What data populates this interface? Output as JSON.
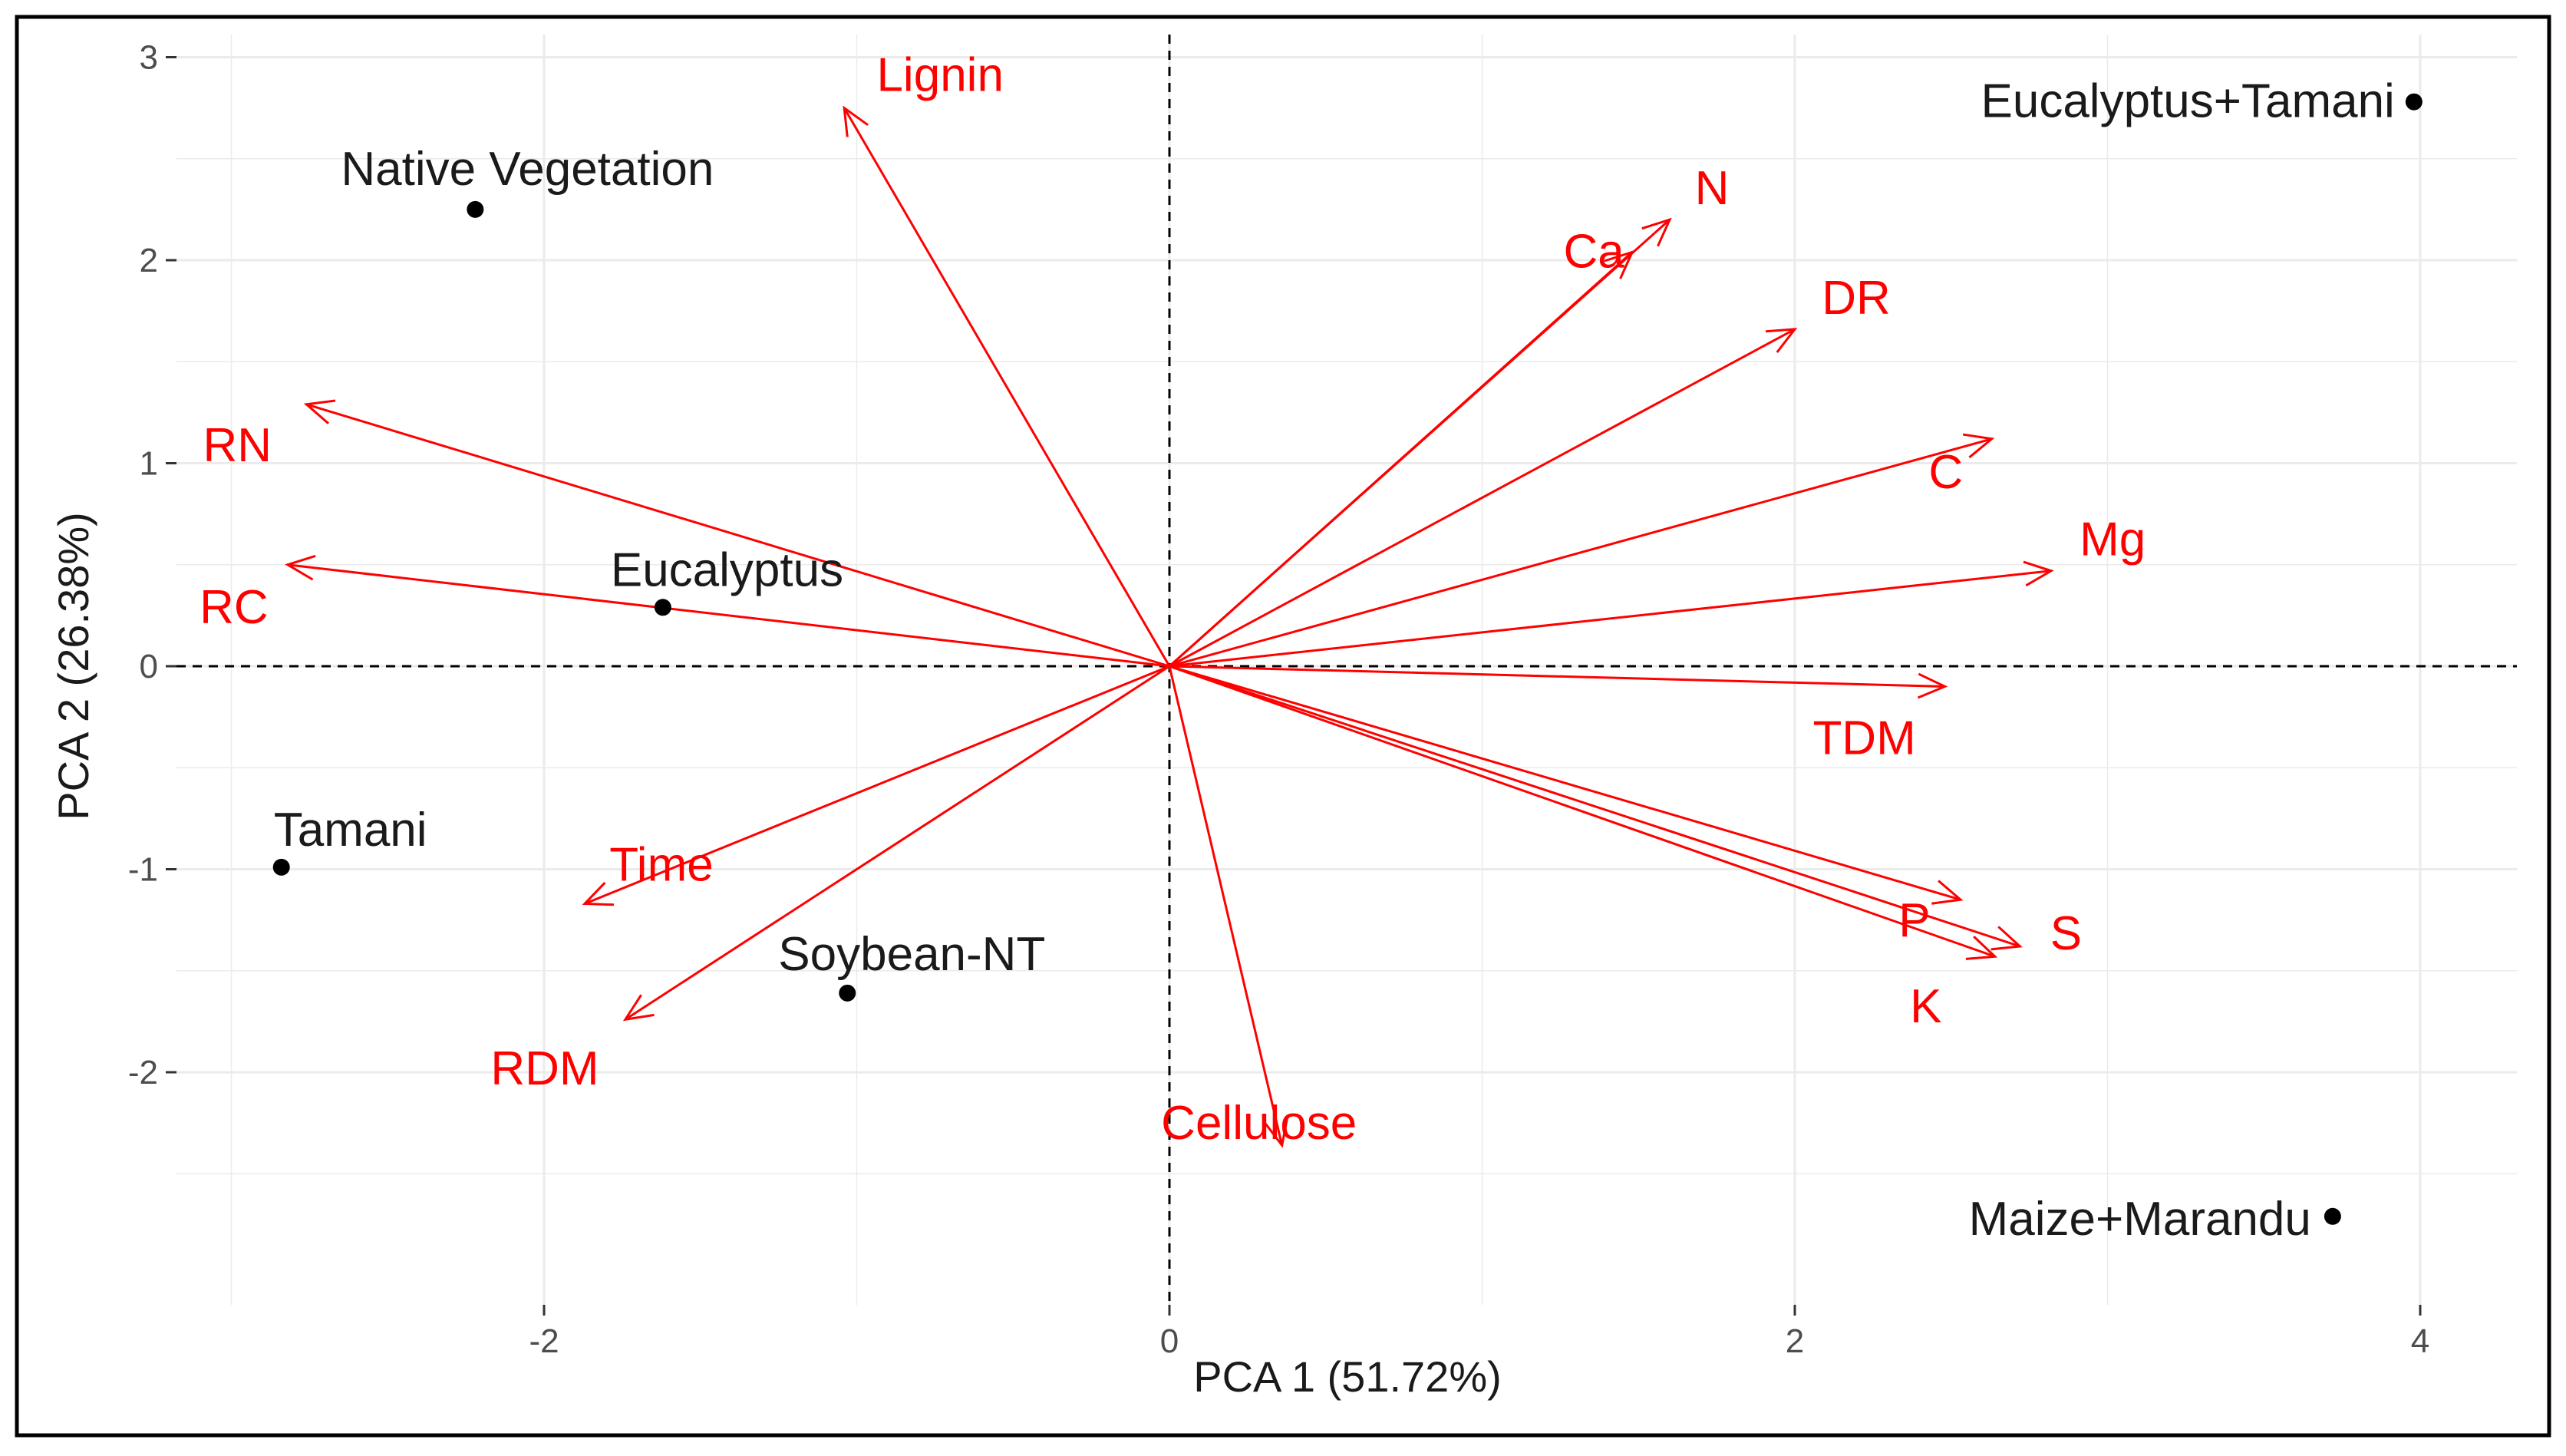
{
  "chart_data": {
    "type": "scatter",
    "subtype": "pca-biplot",
    "title": "",
    "xlabel": "PCA 1 (51.72%)",
    "ylabel": "PCA 2 (26.38%)",
    "xlim": [
      -3.2,
      4.3
    ],
    "ylim": [
      -3.0,
      3.1
    ],
    "x_ticks": [
      -2,
      0,
      2,
      4
    ],
    "x_tick_labels": [
      "-2",
      "0",
      "2",
      "4"
    ],
    "y_ticks": [
      3,
      2,
      1,
      0,
      -1,
      -2
    ],
    "y_tick_labels": [
      "3",
      "2",
      "1",
      "0",
      "-1",
      "-2"
    ],
    "grid": true,
    "reference_lines": [
      "x = 0 (dashed)",
      "y = 0 (dashed)"
    ],
    "observations": [
      {
        "name": "Native Vegetation",
        "x": -2.22,
        "y": 2.25
      },
      {
        "name": "Eucalyptus+Tamani",
        "x": 3.98,
        "y": 2.78
      },
      {
        "name": "Eucalyptus",
        "x": -1.62,
        "y": 0.29
      },
      {
        "name": "Tamani",
        "x": -2.84,
        "y": -0.99
      },
      {
        "name": "Soybean-NT",
        "x": -1.03,
        "y": -1.61
      },
      {
        "name": "Maize+Marandu",
        "x": 3.72,
        "y": -2.71
      }
    ],
    "loadings": [
      {
        "name": "Lignin",
        "x": -1.04,
        "y": 2.75
      },
      {
        "name": "N",
        "x": 1.6,
        "y": 2.2
      },
      {
        "name": "Ca",
        "x": 1.48,
        "y": 2.04
      },
      {
        "name": "DR",
        "x": 2.0,
        "y": 1.66
      },
      {
        "name": "C",
        "x": 2.63,
        "y": 1.12
      },
      {
        "name": "Mg",
        "x": 2.82,
        "y": 0.47
      },
      {
        "name": "TDM",
        "x": 2.48,
        "y": -0.1
      },
      {
        "name": "P",
        "x": 2.53,
        "y": -1.15
      },
      {
        "name": "S",
        "x": 2.72,
        "y": -1.38
      },
      {
        "name": "K",
        "x": 2.64,
        "y": -1.43
      },
      {
        "name": "Cellulose",
        "x": 0.36,
        "y": -2.36
      },
      {
        "name": "RDM",
        "x": -1.74,
        "y": -1.74
      },
      {
        "name": "Time",
        "x": -1.87,
        "y": -1.17
      },
      {
        "name": "RC",
        "x": -2.82,
        "y": 0.5
      },
      {
        "name": "RN",
        "x": -2.76,
        "y": 1.29
      }
    ],
    "colors": {
      "observations": "#000000",
      "loadings": "#ff0000",
      "grid": "#ebebeb",
      "frame": "#000000"
    }
  }
}
